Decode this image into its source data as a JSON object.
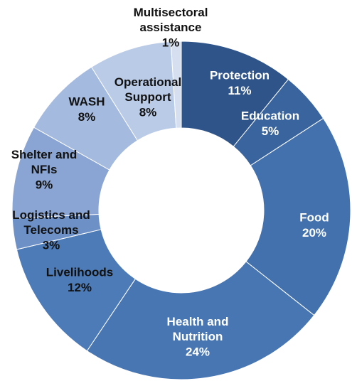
{
  "chart_data": {
    "type": "donut",
    "categories": [
      "Protection",
      "Education",
      "Food",
      "Health and Nutrition",
      "Livelihoods",
      "Logistics and Telecoms",
      "Shelter and NFIs",
      "WASH",
      "Operational Support",
      "Multisectoral assistance"
    ],
    "values": [
      11,
      5,
      20,
      24,
      12,
      3,
      9,
      8,
      8,
      1
    ],
    "value_labels": [
      "11%",
      "5%",
      "20%",
      "24%",
      "12%",
      "3%",
      "9%",
      "8%",
      "8%",
      "1%"
    ],
    "colors": [
      "#2f5489",
      "#3a649d",
      "#4271ae",
      "#4876b3",
      "#4d7bb8",
      "#6d90c6",
      "#8aa5d3",
      "#a4badf",
      "#bacbe7",
      "#d6dff0"
    ]
  }
}
